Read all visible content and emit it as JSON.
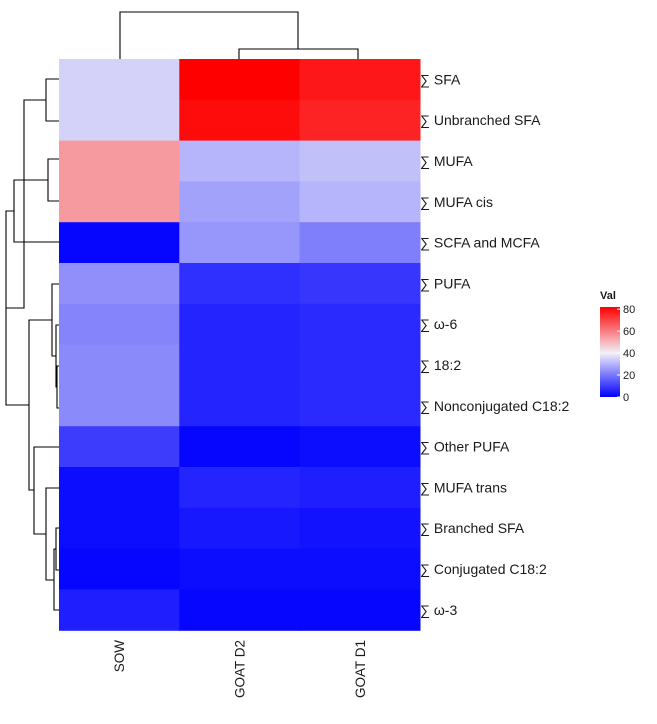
{
  "chart_data": {
    "type": "heatmap",
    "title": "",
    "columns": [
      "SOW",
      "GOAT D2",
      "GOAT D1"
    ],
    "rows": [
      "∑ SFA",
      "∑ Unbranched SFA",
      "∑ MUFA",
      "∑ MUFA cis",
      "∑ SCFA and MCFA",
      "∑ PUFA",
      "∑ ω-6",
      "∑ 18:2",
      "∑ Nonconjugated C18:2",
      "∑ Other PUFA",
      "∑ MUFA trans",
      "∑ Branched SFA",
      "∑ Conjugated C18:2",
      "∑ ω-3"
    ],
    "values": [
      [
        35,
        82,
        78
      ],
      [
        35,
        80,
        76
      ],
      [
        55,
        30,
        32
      ],
      [
        55,
        27,
        30
      ],
      [
        1,
        25,
        21
      ],
      [
        24,
        8,
        9
      ],
      [
        22,
        6,
        7
      ],
      [
        23,
        6,
        7
      ],
      [
        23,
        6,
        7
      ],
      [
        10,
        1,
        2
      ],
      [
        2,
        6,
        5
      ],
      [
        2,
        4,
        3
      ],
      [
        1,
        2,
        2
      ],
      [
        5,
        1,
        1
      ]
    ],
    "legend": {
      "title": "Val",
      "ticks": [
        0,
        20,
        40,
        60,
        80
      ],
      "tick_labels": [
        "0",
        "20",
        "40",
        "60",
        "80"
      ],
      "min": 0,
      "max": 82,
      "colors": {
        "low": "#0000ff",
        "mid": "#f2f0f8",
        "high": "#ff0000"
      },
      "mid_value": 40
    }
  }
}
